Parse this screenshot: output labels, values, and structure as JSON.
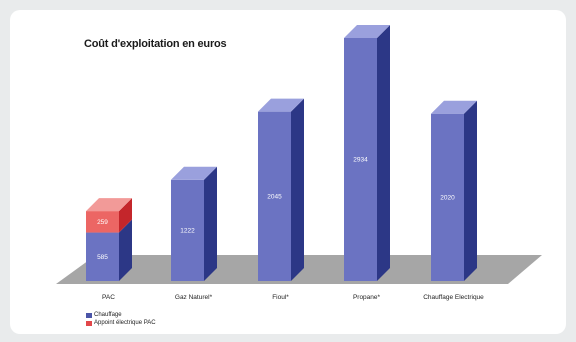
{
  "chart_data": {
    "type": "bar",
    "title": "Coût d'exploitation en euros",
    "categories": [
      "PAC",
      "Gaz Naturel*",
      "Fioul*",
      "Propane*",
      "Chauffage Electrique"
    ],
    "series": [
      {
        "name": "Chauffage",
        "values": [
          585,
          1222,
          2045,
          2934,
          2020
        ]
      },
      {
        "name": "Appoint électrique PAC",
        "values": [
          259,
          0,
          0,
          0,
          0
        ]
      }
    ],
    "value_labels": [
      [
        "585",
        "1222",
        "2045",
        "2934",
        "2020"
      ],
      [
        "259",
        "",
        "",
        "",
        ""
      ]
    ],
    "colors": {
      "front": "#6b73c2",
      "side": "#2c3786",
      "top": "#9aa0dd",
      "appoint_front": "#ec6664",
      "appoint_side": "#c4262b",
      "appoint_top": "#f29a98",
      "floor": "#a6a6a6"
    },
    "legend": [
      {
        "label": "Chauffage",
        "color": "#4b55a8"
      },
      {
        "label": "Appoint électrique PAC",
        "color": "#e2474a"
      }
    ],
    "ylim": [
      0,
      2934
    ],
    "grid": false
  }
}
